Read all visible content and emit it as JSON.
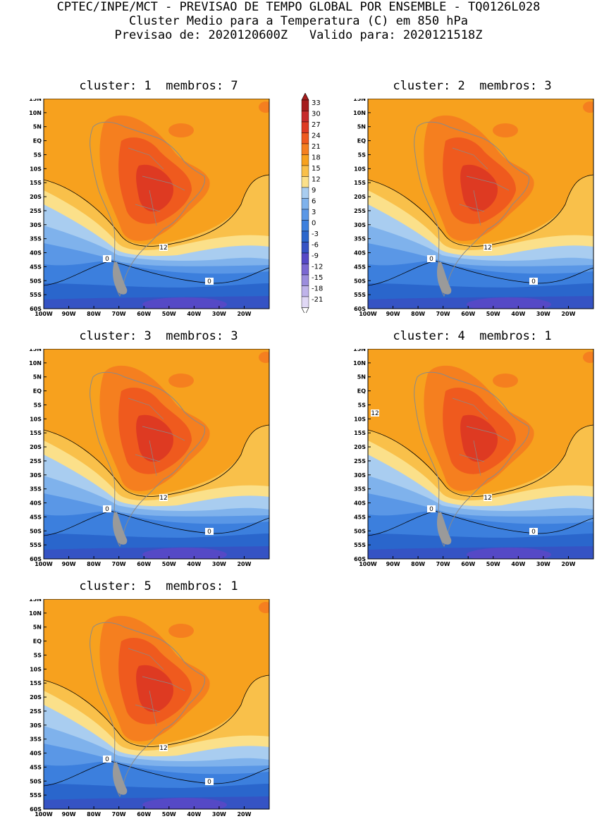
{
  "header": {
    "line1": "CPTEC/INPE/MCT - PREVISAO DE TEMPO GLOBAL POR ENSEMBLE - TQ0126L028",
    "line2": "Cluster Medio para a Temperatura (C) em 850 hPa",
    "line3": "Previsao de: 2020120600Z   Valido para: 2020121518Z"
  },
  "axes": {
    "lat_labels": [
      "15N",
      "10N",
      "5N",
      "EQ",
      "5S",
      "10S",
      "15S",
      "20S",
      "25S",
      "30S",
      "35S",
      "40S",
      "45S",
      "50S",
      "55S",
      "60S"
    ],
    "lon_labels": [
      "100W",
      "90W",
      "80W",
      "70W",
      "60W",
      "50W",
      "40W",
      "30W",
      "20W"
    ],
    "lat_range": [
      -60,
      15
    ],
    "lon_range": [
      -100,
      -10
    ]
  },
  "colorbar": {
    "levels": [
      "33",
      "30",
      "27",
      "24",
      "21",
      "18",
      "15",
      "12",
      "9",
      "6",
      "3",
      "0",
      "-3",
      "-6",
      "-9",
      "-12",
      "-15",
      "-18",
      "-21"
    ],
    "colors": [
      "#a51c1c",
      "#c62a2a",
      "#de3a22",
      "#ef5a1e",
      "#f57f1f",
      "#f7a11e",
      "#f9c04a",
      "#fbe08a",
      "#a9cdf0",
      "#7fb2ec",
      "#5a97e6",
      "#3c7fdd",
      "#2a66cc",
      "#3553c4",
      "#5549c6",
      "#7a68d2",
      "#9b8ddd",
      "#bfb3ea",
      "#e0d8f5"
    ]
  },
  "panels": [
    {
      "id": 1,
      "cluster_label": "cluster:",
      "cluster": "1",
      "members_label": "membros:",
      "members": "7",
      "c12": "12",
      "c0a": "0",
      "c0b": "0"
    },
    {
      "id": 2,
      "cluster_label": "cluster:",
      "cluster": "2",
      "members_label": "membros:",
      "members": "3",
      "c12": "12",
      "c0a": "0",
      "c0b": "0"
    },
    {
      "id": 3,
      "cluster_label": "cluster:",
      "cluster": "3",
      "members_label": "membros:",
      "members": "3",
      "c12": "12",
      "c0a": "0",
      "c0b": "0"
    },
    {
      "id": 4,
      "cluster_label": "cluster:",
      "cluster": "4",
      "members_label": "membros:",
      "members": "1",
      "c12": "12",
      "c12b": "12",
      "c0a": "0",
      "c0b": "0"
    },
    {
      "id": 5,
      "cluster_label": "cluster:",
      "cluster": "5",
      "members_label": "membros:",
      "members": "1",
      "c12": "12",
      "c0a": "0",
      "c0b": "0"
    }
  ]
}
